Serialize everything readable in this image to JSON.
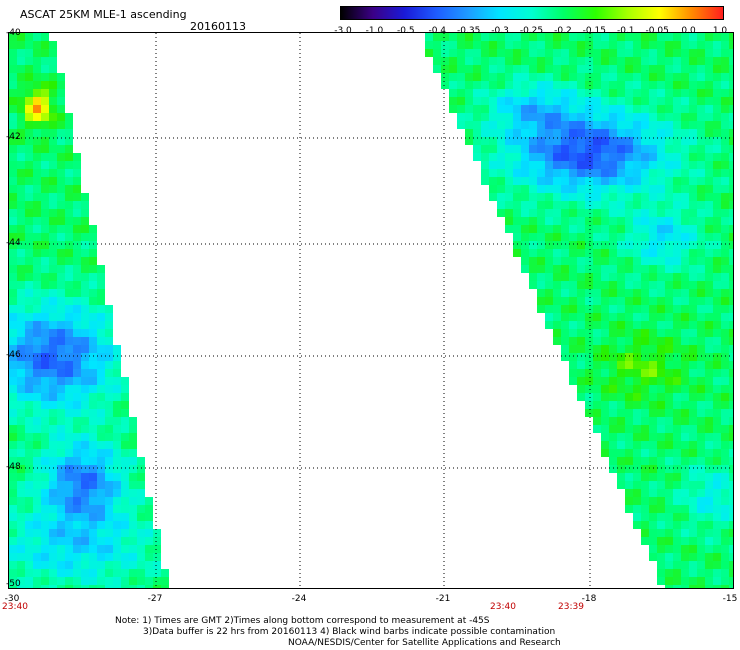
{
  "header": {
    "title": "ASCAT 25KM MLE-1 ascending",
    "date": "20160113"
  },
  "colorbar": {
    "labels": [
      "-3.0",
      "-1.0",
      "-0.5",
      "-0.4",
      "-0.35",
      "-0.3",
      "-0.25",
      "-0.2",
      "-0.15",
      "-0.1",
      "-0.05",
      "0.0",
      "1.0"
    ],
    "colors": [
      "#000000",
      "#3b0086",
      "#1a1ad8",
      "#1e5cff",
      "#1e9cff",
      "#00e6ff",
      "#00ffd0",
      "#00ff66",
      "#2dff00",
      "#a6ff00",
      "#ffff00",
      "#ff8c00",
      "#ff1e1e"
    ]
  },
  "axes": {
    "y_labels": [
      "-40",
      "-42",
      "-44",
      "-46",
      "-48",
      "-50"
    ],
    "x_labels": [
      "-30",
      "-27",
      "-24",
      "-21",
      "-18",
      "-15"
    ],
    "time_labels": [
      "23:40",
      "23:40",
      "23:39"
    ]
  },
  "notes": {
    "line1": "Note: 1) Times are GMT 2)Times along bottom correspond to measurement at -45S",
    "line2": "3)Data buffer is 22 hrs from 20160113 4) Black wind barbs indicate possible contamination",
    "line3": "NOAA/NESDIS/Center for Satellite Applications and Research"
  }
}
